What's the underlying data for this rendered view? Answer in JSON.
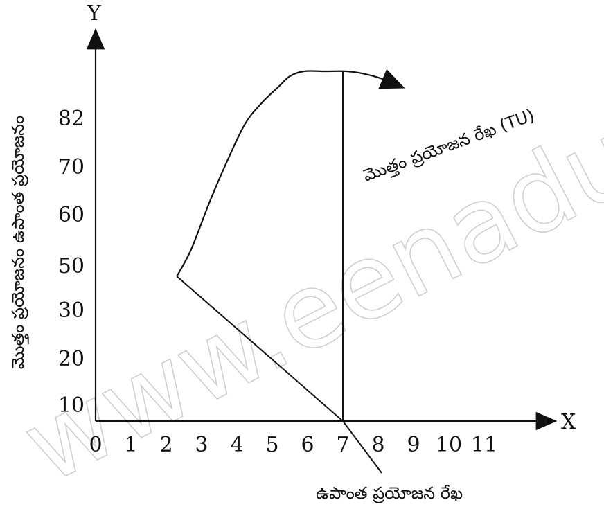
{
  "chart_data": {
    "type": "line",
    "x_axis_letter": "X",
    "y_axis_letter": "Y",
    "ylabel": "మొత్తం ప్రయోజనం ఉపాంత ప్రయోజనం",
    "x_ticks": [
      "0",
      "1",
      "2",
      "3",
      "4",
      "5",
      "6",
      "7",
      "8",
      "9",
      "10",
      "11"
    ],
    "y_ticks": [
      "10",
      "20",
      "30",
      "50",
      "60",
      "70",
      "82"
    ],
    "xlim": [
      0,
      11.5
    ],
    "series": [
      {
        "name": "మొత్తం ప్రయోజన రేఖ (TU)",
        "points": [
          [
            2.3,
            45
          ],
          [
            2.7,
            53
          ],
          [
            3.2,
            62
          ],
          [
            3.6,
            69
          ],
          [
            4.2,
            80
          ],
          [
            4.7,
            88
          ],
          [
            5.2,
            95
          ],
          [
            5.5,
            99
          ],
          [
            5.9,
            101
          ],
          [
            6.5,
            101
          ],
          [
            7.1,
            101
          ],
          [
            7.6,
            100
          ],
          [
            8.1,
            98
          ],
          [
            8.6,
            95
          ]
        ]
      },
      {
        "name": "ఉపాంత ప్రయోజన రేఖ",
        "points": [
          [
            2.3,
            45
          ],
          [
            7,
            0
          ],
          [
            8.1,
            -11
          ]
        ]
      }
    ],
    "annotations": [
      {
        "type": "vertical_line",
        "x": 7,
        "y_from": 0,
        "y_to": 101
      }
    ]
  },
  "watermark": "www.eenadupratibha"
}
